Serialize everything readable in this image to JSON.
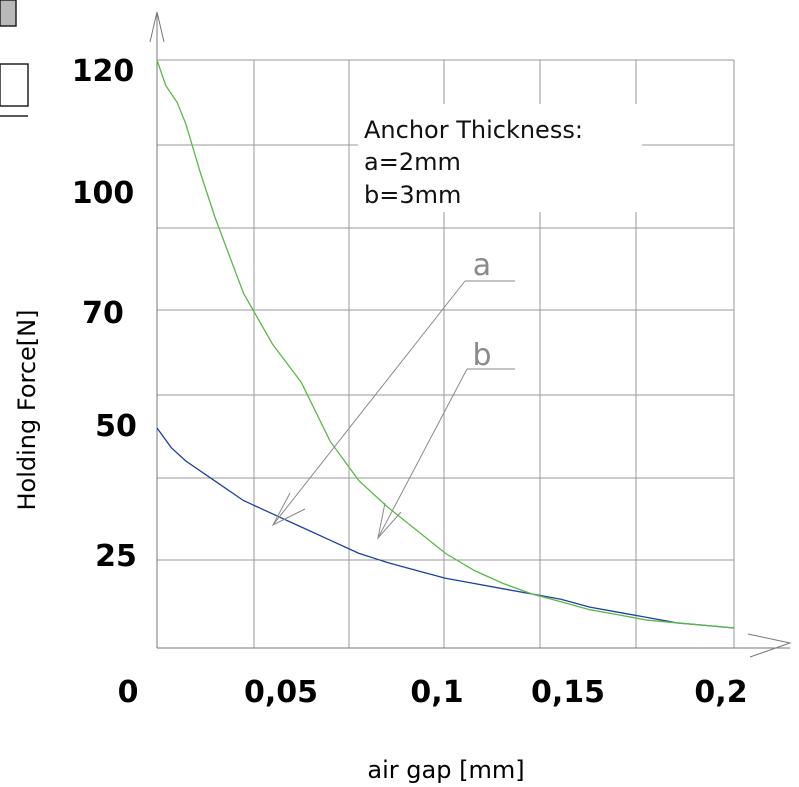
{
  "chart_data": {
    "type": "line",
    "xlabel": "air gap [mm]",
    "ylabel": "Holding Force[N]",
    "x_tick_labels": [
      "0",
      "0,05",
      "0,1",
      "0,15",
      "0,2"
    ],
    "y_tick_labels": [
      "120",
      "100",
      "70",
      "50",
      "25"
    ],
    "xlim": [
      0,
      0.2
    ],
    "grid": true,
    "annotation": [
      "Anchor Thickness:",
      "a=2mm",
      "b=3mm"
    ],
    "series": [
      {
        "name": "a",
        "color": "#1f3f9f",
        "x": [
          0,
          0.005,
          0.01,
          0.02,
          0.03,
          0.04,
          0.05,
          0.06,
          0.07,
          0.08,
          0.09,
          0.1,
          0.11,
          0.12,
          0.13,
          0.14,
          0.15,
          0.16,
          0.17,
          0.18,
          0.19,
          0.2
        ],
        "y": [
          45,
          42,
          40,
          37,
          34,
          32,
          30,
          28,
          26,
          24.5,
          23,
          21.5,
          20.5,
          19.5,
          18.5,
          17.5,
          16,
          15,
          14,
          13,
          12.5,
          12
        ]
      },
      {
        "name": "b",
        "color": "#5cb848",
        "x": [
          0,
          0.003,
          0.007,
          0.01,
          0.015,
          0.02,
          0.025,
          0.03,
          0.04,
          0.05,
          0.06,
          0.07,
          0.08,
          0.09,
          0.1,
          0.11,
          0.12,
          0.13,
          0.14,
          0.15,
          0.16,
          0.17,
          0.18,
          0.19,
          0.2
        ],
        "y": [
          120,
          114,
          110,
          105,
          95,
          87,
          80,
          73,
          62,
          53,
          43,
          37,
          33,
          29.5,
          26,
          23,
          20.5,
          18.5,
          17,
          15.5,
          14.5,
          13.5,
          13,
          12.5,
          12
        ]
      }
    ]
  }
}
